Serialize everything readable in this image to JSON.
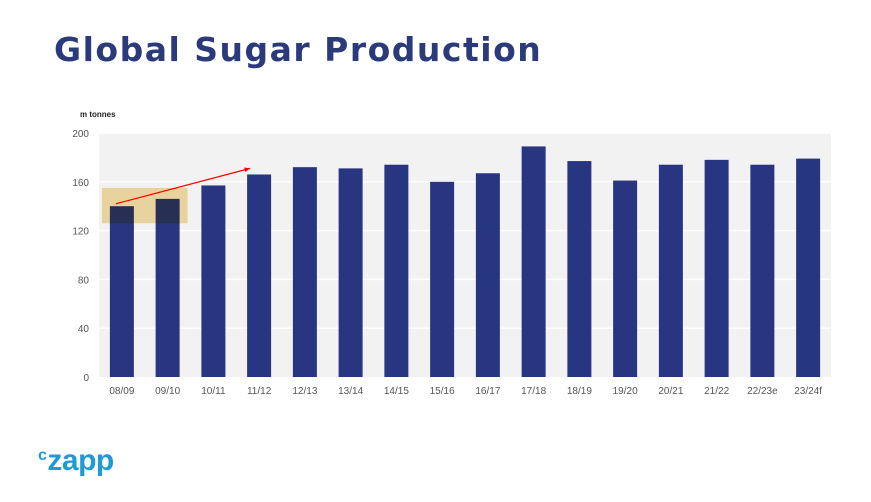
{
  "title": "Global Sugar Production",
  "logo": {
    "prefix": "c",
    "text": "zapp"
  },
  "colors": {
    "bar": "#283580",
    "plot_bg": "#f2f2f2",
    "highlight": "#f2d48a",
    "arrow": "#ff0000",
    "title": "#2b3a7a",
    "logo": "#1e9ad6"
  },
  "chart_data": {
    "type": "bar",
    "title": "Global Sugar Production",
    "ylabel": "m tonnes",
    "xlabel": "",
    "ylim": [
      0,
      200
    ],
    "yticks": [
      0,
      40,
      80,
      120,
      160,
      200
    ],
    "grid": true,
    "categories": [
      "08/09",
      "09/10",
      "10/11",
      "11/12",
      "12/13",
      "13/14",
      "14/15",
      "15/16",
      "16/17",
      "17/18",
      "18/19",
      "19/20",
      "20/21",
      "21/22",
      "22/23e",
      "23/24f"
    ],
    "values": [
      140,
      146,
      157,
      166,
      172,
      171,
      174,
      160,
      167,
      189,
      177,
      161,
      174,
      178,
      174,
      179
    ],
    "annotations": [
      {
        "type": "highlight-box",
        "categories": [
          "08/09",
          "09/10"
        ],
        "y_range": [
          126,
          155
        ]
      },
      {
        "type": "arrow",
        "from": {
          "category": "08/09",
          "y": 142
        },
        "to": {
          "category": "11/12",
          "y": 171
        }
      }
    ]
  }
}
